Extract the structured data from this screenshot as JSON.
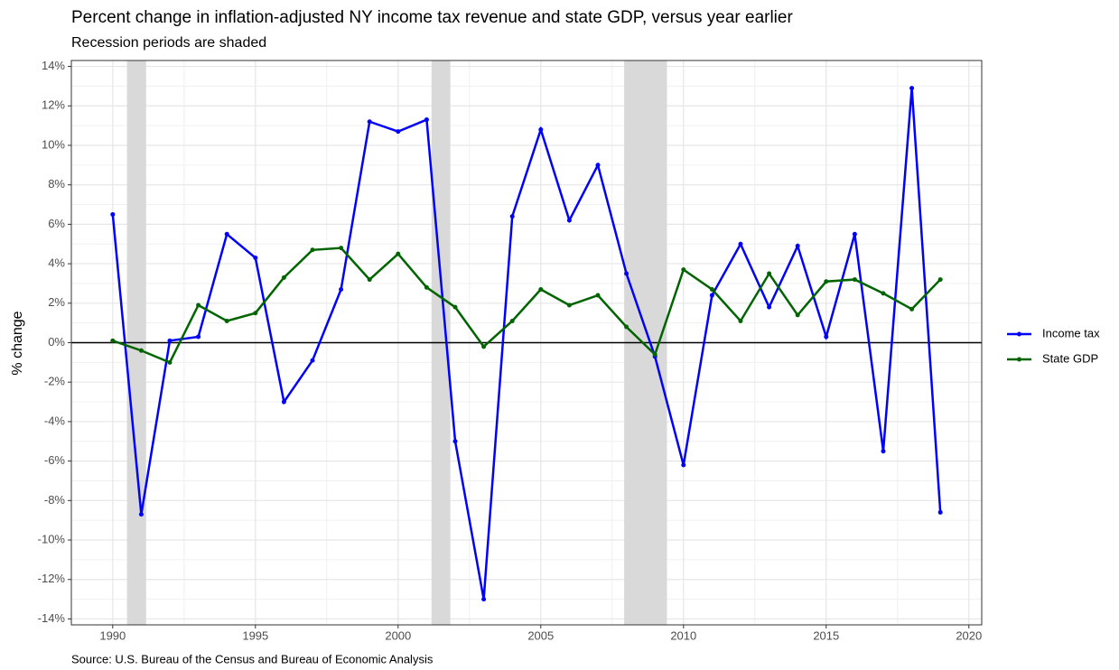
{
  "chart_data": {
    "type": "line",
    "title": "Percent change in inflation-adjusted NY income tax revenue and state GDP, versus year earlier",
    "subtitle": "Recession periods are shaded",
    "y_label": "% change",
    "caption": "Source: U.S. Bureau of the Census and Bureau of Economic Analysis",
    "x": [
      1990,
      1991,
      1992,
      1993,
      1994,
      1995,
      1996,
      1997,
      1998,
      1999,
      2000,
      2001,
      2002,
      2003,
      2004,
      2005,
      2006,
      2007,
      2008,
      2009,
      2010,
      2011,
      2012,
      2013,
      2014,
      2015,
      2016,
      2017,
      2018,
      2019
    ],
    "series": [
      {
        "name": "Income tax",
        "color": "#0000ff",
        "values": [
          6.5,
          -8.7,
          0.1,
          0.3,
          5.5,
          4.3,
          -3.0,
          -0.9,
          2.7,
          11.2,
          10.7,
          11.3,
          -5.0,
          -13.0,
          6.4,
          10.8,
          6.2,
          9.0,
          3.5,
          -0.7,
          -6.2,
          2.4,
          5.0,
          1.8,
          4.9,
          0.3,
          5.5,
          -5.5,
          12.9,
          -8.6
        ]
      },
      {
        "name": "State GDP",
        "color": "#006400",
        "values": [
          0.1,
          -0.4,
          -1.0,
          1.9,
          1.1,
          1.5,
          3.3,
          4.7,
          4.8,
          3.2,
          4.5,
          2.8,
          1.8,
          -0.2,
          1.1,
          2.7,
          1.9,
          2.4,
          0.8,
          -0.6,
          3.7,
          2.7,
          1.1,
          3.5,
          1.4,
          3.1,
          3.2,
          2.5,
          1.7,
          3.2
        ]
      }
    ],
    "recessions": [
      [
        1990.5,
        1991.17
      ],
      [
        2001.17,
        2001.83
      ],
      [
        2007.92,
        2009.42
      ]
    ],
    "hline": 0,
    "xlim": [
      1988.55,
      2020.45
    ],
    "ylim": [
      -14.3,
      14.3
    ],
    "xticks": [
      1990,
      1995,
      2000,
      2005,
      2010,
      2015,
      2020
    ],
    "yticks": [
      {
        "value": 14,
        "label": "14%"
      },
      {
        "value": 12,
        "label": "12%"
      },
      {
        "value": 10,
        "label": "10%"
      },
      {
        "value": 8,
        "label": "8%"
      },
      {
        "value": 6,
        "label": "6%"
      },
      {
        "value": 4,
        "label": "4%"
      },
      {
        "value": 2,
        "label": "2%"
      },
      {
        "value": 0,
        "label": "0%"
      },
      {
        "value": -2,
        "label": "-2%"
      },
      {
        "value": -4,
        "label": "-4%"
      },
      {
        "value": -6,
        "label": "-6%"
      },
      {
        "value": -8,
        "label": "-8%"
      },
      {
        "value": -10,
        "label": "-10%"
      },
      {
        "value": -12,
        "label": "-12%"
      },
      {
        "value": -14,
        "label": "-14%"
      }
    ],
    "grid": true,
    "legend": "right"
  }
}
